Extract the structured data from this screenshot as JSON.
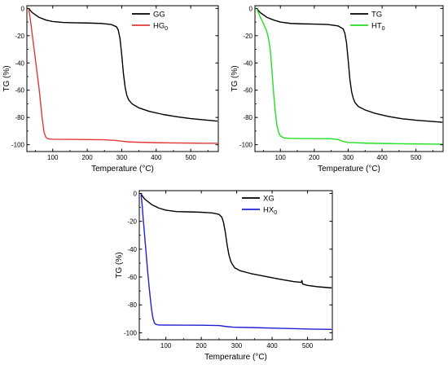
{
  "chart_data": [
    {
      "type": "line",
      "title": "",
      "xlabel": "Temperature (°C)",
      "ylabel": "TG (%)",
      "xlim": [
        25,
        580
      ],
      "ylim": [
        -105,
        2
      ],
      "xticks": [
        100,
        200,
        300,
        400,
        500
      ],
      "yticks": [
        0,
        -20,
        -40,
        -60,
        -80,
        -100
      ],
      "legend_position": "top-right",
      "grid": false,
      "series": [
        {
          "name": "GG",
          "name_sub": "",
          "color": "#000000",
          "x": [
            30,
            40,
            60,
            80,
            100,
            130,
            160,
            200,
            240,
            270,
            285,
            290,
            295,
            300,
            305,
            310,
            315,
            320,
            330,
            350,
            380,
            420,
            460,
            500,
            540,
            578
          ],
          "y": [
            0,
            -3,
            -6.5,
            -8.5,
            -9.6,
            -10.3,
            -10.5,
            -10.7,
            -11,
            -11.8,
            -13.5,
            -16,
            -22,
            -34,
            -48,
            -58,
            -64,
            -67,
            -70,
            -73,
            -75.5,
            -77.8,
            -79.5,
            -80.8,
            -81.8,
            -82.7
          ]
        },
        {
          "name": "HG",
          "name_sub": "0",
          "color": "#e03a3a",
          "x": [
            30,
            35,
            40,
            45,
            50,
            55,
            60,
            65,
            70,
            75,
            80,
            85,
            90,
            100,
            150,
            200,
            250,
            280,
            300,
            320,
            350,
            400,
            450,
            500,
            540,
            578
          ],
          "y": [
            0,
            -8,
            -18,
            -28,
            -38,
            -48,
            -58,
            -70,
            -82,
            -91,
            -94.5,
            -95.5,
            -95.8,
            -96,
            -96.1,
            -96.2,
            -96.4,
            -96.8,
            -97.4,
            -97.9,
            -98.2,
            -98.5,
            -98.7,
            -98.8,
            -98.9,
            -99
          ]
        }
      ]
    },
    {
      "type": "line",
      "title": "",
      "xlabel": "Temperature (°C)",
      "ylabel": "TG (%)",
      "xlim": [
        25,
        580
      ],
      "ylim": [
        -105,
        2
      ],
      "xticks": [
        100,
        200,
        300,
        400,
        500
      ],
      "yticks": [
        0,
        -20,
        -40,
        -60,
        -80,
        -100
      ],
      "legend_position": "top-right",
      "grid": false,
      "series": [
        {
          "name": "TG",
          "name_sub": "",
          "color": "#000000",
          "x": [
            30,
            40,
            60,
            80,
            100,
            130,
            160,
            200,
            240,
            270,
            285,
            290,
            295,
            300,
            305,
            310,
            315,
            320,
            330,
            350,
            380,
            420,
            460,
            500,
            540,
            578
          ],
          "y": [
            0,
            -3,
            -6.5,
            -8.5,
            -10,
            -11,
            -11.3,
            -11.5,
            -11.8,
            -12.8,
            -15,
            -18,
            -25,
            -38,
            -52,
            -61,
            -66,
            -69,
            -72,
            -74.5,
            -77,
            -79.3,
            -81,
            -82,
            -82.8,
            -83.5
          ]
        },
        {
          "name": "HT",
          "name_sub": "0",
          "color": "#22e022",
          "x": [
            30,
            35,
            40,
            45,
            50,
            55,
            60,
            65,
            70,
            75,
            80,
            85,
            90,
            95,
            100,
            110,
            130,
            160,
            200,
            250,
            270,
            285,
            300,
            350,
            400,
            450,
            500,
            540,
            578
          ],
          "y": [
            0,
            -3,
            -6,
            -8.5,
            -11,
            -14,
            -17,
            -22,
            -30,
            -45,
            -62,
            -76,
            -86,
            -91,
            -93.5,
            -95,
            -95.3,
            -95.5,
            -95.5,
            -95.6,
            -96.2,
            -97.6,
            -98.3,
            -98.8,
            -99.1,
            -99.3,
            -99.4,
            -99.5,
            -99.6
          ]
        }
      ]
    },
    {
      "type": "line",
      "title": "",
      "xlabel": "Temperature (°C)",
      "ylabel": "TG (%)",
      "xlim": [
        25,
        570
      ],
      "ylim": [
        -105,
        2
      ],
      "xticks": [
        100,
        200,
        300,
        400,
        500
      ],
      "yticks": [
        0,
        -20,
        -40,
        -60,
        -80,
        -100
      ],
      "legend_position": "top-right",
      "grid": false,
      "series": [
        {
          "name": "XG",
          "name_sub": "",
          "color": "#000000",
          "x": [
            30,
            40,
            60,
            80,
            100,
            130,
            160,
            200,
            230,
            250,
            258,
            263,
            268,
            273,
            278,
            283,
            288,
            295,
            310,
            340,
            380,
            420,
            460,
            482,
            484,
            486,
            500,
            530,
            568
          ],
          "y": [
            -0.5,
            -4,
            -8,
            -10.5,
            -12,
            -13,
            -13.2,
            -13.5,
            -14,
            -15,
            -17,
            -21,
            -28,
            -37,
            -44,
            -48.5,
            -51,
            -53.5,
            -55.5,
            -57.5,
            -59.5,
            -61.5,
            -63.2,
            -63.8,
            -62.5,
            -65,
            -66,
            -67,
            -67.8
          ]
        },
        {
          "name": "HX",
          "name_sub": "0",
          "color": "#1f1fd6",
          "x": [
            30,
            33,
            36,
            40,
            44,
            48,
            52,
            56,
            60,
            64,
            68,
            72,
            80,
            120,
            200,
            250,
            270,
            290,
            350,
            420,
            500,
            568
          ],
          "y": [
            -0.5,
            -8,
            -18,
            -30,
            -42,
            -54,
            -65,
            -75,
            -84,
            -90,
            -93,
            -94,
            -94.4,
            -94.5,
            -94.6,
            -94.8,
            -95.5,
            -96,
            -96.3,
            -96.8,
            -97.3,
            -97.6
          ]
        }
      ]
    }
  ]
}
